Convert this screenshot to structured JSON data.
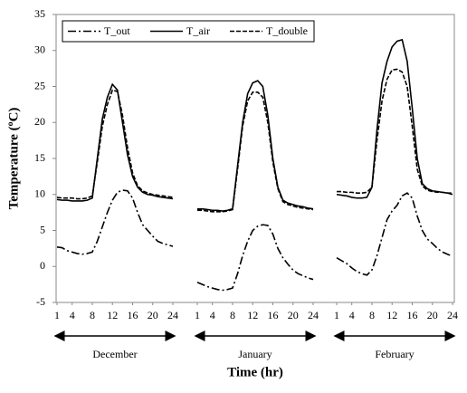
{
  "chart_data": {
    "type": "line",
    "ylabel": "Temperature (ºC)",
    "xlabel": "Time (hr)",
    "ylim": [
      -5,
      35
    ],
    "yticks": [
      -5,
      0,
      5,
      10,
      15,
      20,
      25,
      30,
      35
    ],
    "legend": "top-left",
    "series": [
      {
        "name": "T_out",
        "color": "#000000",
        "dash": "dashdot"
      },
      {
        "name": "T_air",
        "color": "#000000",
        "dash": "solid"
      },
      {
        "name": "T_double",
        "color": "#000000",
        "dash": "dashed"
      }
    ],
    "panels": [
      {
        "label": "December",
        "xlim": [
          1,
          24
        ],
        "xticks": [
          1,
          4,
          8,
          12,
          16,
          20,
          24
        ],
        "x": [
          1,
          2,
          3,
          4,
          5,
          6,
          7,
          8,
          9,
          10,
          11,
          12,
          13,
          14,
          15,
          16,
          17,
          18,
          19,
          20,
          21,
          22,
          23,
          24
        ],
        "series": [
          {
            "values": [
              2.7,
              2.6,
              2.2,
              2.0,
              1.8,
              1.7,
              1.8,
              2.0,
              3.5,
              5.5,
              7.5,
              9.2,
              10.3,
              10.6,
              10.5,
              9.5,
              7.5,
              5.8,
              5.0,
              4.2,
              3.5,
              3.2,
              3.0,
              2.8
            ]
          },
          {
            "values": [
              9.3,
              9.2,
              9.2,
              9.1,
              9.1,
              9.1,
              9.2,
              9.5,
              15,
              20.5,
              23.5,
              25.3,
              24.5,
              20,
              15.5,
              12.5,
              11,
              10.3,
              10,
              9.9,
              9.7,
              9.6,
              9.5,
              9.4
            ]
          },
          {
            "values": [
              9.6,
              9.5,
              9.5,
              9.5,
              9.4,
              9.4,
              9.5,
              9.8,
              14.5,
              19.5,
              22.5,
              24.5,
              24.3,
              21,
              16.5,
              13,
              11.2,
              10.5,
              10.2,
              10,
              9.9,
              9.8,
              9.7,
              9.6
            ]
          }
        ]
      },
      {
        "label": "January",
        "xlim": [
          1,
          24
        ],
        "xticks": [
          1,
          4,
          8,
          12,
          16,
          20,
          24
        ],
        "x": [
          1,
          2,
          3,
          4,
          5,
          6,
          7,
          8,
          9,
          10,
          11,
          12,
          13,
          14,
          15,
          16,
          17,
          18,
          19,
          20,
          21,
          22,
          23,
          24
        ],
        "series": [
          {
            "values": [
              -2.2,
              -2.5,
              -2.8,
              -3.0,
              -3.2,
              -3.3,
              -3.2,
              -3.0,
              -1.0,
              1.5,
              3.5,
              5.0,
              5.6,
              5.8,
              5.7,
              4.5,
              2.5,
              1.2,
              0.3,
              -0.5,
              -1.0,
              -1.3,
              -1.6,
              -1.8
            ]
          },
          {
            "values": [
              8.0,
              8.0,
              7.9,
              7.8,
              7.8,
              7.7,
              7.8,
              8.0,
              14,
              20,
              24,
              25.5,
              25.8,
              25,
              21,
              15,
              11,
              9.2,
              8.8,
              8.6,
              8.4,
              8.3,
              8.1,
              8.0
            ]
          },
          {
            "values": [
              7.8,
              7.8,
              7.7,
              7.6,
              7.6,
              7.6,
              7.7,
              7.9,
              13.5,
              19.5,
              23,
              24.2,
              24.2,
              23.5,
              20,
              14.5,
              10.8,
              9,
              8.6,
              8.4,
              8.2,
              8.1,
              8.0,
              7.9
            ]
          }
        ]
      },
      {
        "label": "February",
        "xlim": [
          1,
          24
        ],
        "xticks": [
          1,
          4,
          8,
          12,
          16,
          20,
          24
        ],
        "x": [
          1,
          2,
          3,
          4,
          5,
          6,
          7,
          8,
          9,
          10,
          11,
          12,
          13,
          14,
          15,
          16,
          17,
          18,
          19,
          20,
          21,
          22,
          23,
          24
        ],
        "series": [
          {
            "values": [
              1.2,
              0.8,
              0.4,
              -0.2,
              -0.7,
              -1.0,
              -1.2,
              -0.5,
              1.5,
              4,
              6.5,
              7.7,
              8.5,
              9.8,
              10.2,
              9.5,
              7,
              5,
              3.8,
              3.2,
              2.5,
              2,
              1.7,
              1.4
            ]
          },
          {
            "values": [
              10.0,
              9.9,
              9.8,
              9.6,
              9.5,
              9.5,
              9.6,
              11,
              19,
              25.5,
              28.5,
              30.5,
              31.3,
              31.5,
              28.5,
              22,
              15,
              11.5,
              10.8,
              10.5,
              10.4,
              10.3,
              10.2,
              10.0
            ]
          },
          {
            "values": [
              10.4,
              10.4,
              10.3,
              10.3,
              10.2,
              10.2,
              10.3,
              11,
              17.5,
              23,
              26,
              27.3,
              27.4,
              27,
              25,
              19.5,
              13.5,
              11.2,
              10.6,
              10.4,
              10.3,
              10.3,
              10.2,
              10.2
            ]
          }
        ]
      }
    ]
  }
}
